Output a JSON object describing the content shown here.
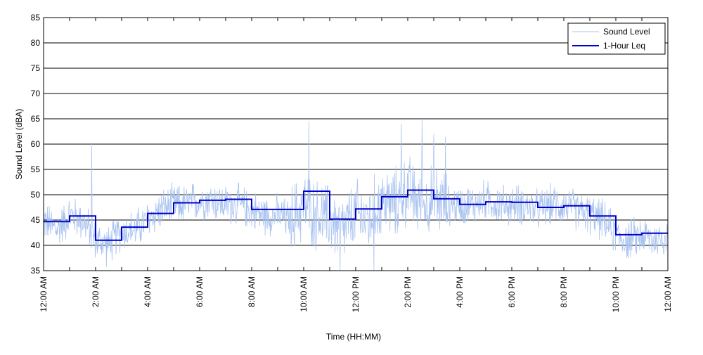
{
  "chart_data": {
    "type": "line",
    "title": "",
    "xlabel": "Time (HH:MM)",
    "ylabel": "Sound Level (dBA)",
    "xlim_hours": [
      0,
      24
    ],
    "ylim": [
      35,
      85
    ],
    "yticks": [
      35,
      40,
      45,
      50,
      55,
      60,
      65,
      70,
      75,
      80,
      85
    ],
    "xtick_labels": [
      "12:00 AM",
      "2:00 AM",
      "4:00 AM",
      "6:00 AM",
      "8:00 AM",
      "10:00 AM",
      "12:00 PM",
      "2:00 PM",
      "4:00 PM",
      "6:00 PM",
      "8:00 PM",
      "10:00 PM",
      "12:00 AM"
    ],
    "grid": "horizontal",
    "legend_position": "top-right",
    "colors": {
      "sound_level": "#a9c3f0",
      "leq": "#0000cc"
    },
    "series": [
      {
        "name": "Sound Level",
        "style": "thin-light",
        "x_hours": [
          0,
          0.5,
          1,
          1.5,
          2,
          2.5,
          3,
          3.5,
          4,
          4.5,
          5,
          5.5,
          6,
          6.5,
          7,
          7.5,
          8,
          8.5,
          9,
          9.5,
          10,
          10.5,
          11,
          11.5,
          12,
          12.5,
          13,
          13.5,
          14,
          14.5,
          15,
          15.5,
          16,
          16.5,
          17,
          17.5,
          18,
          18.5,
          19,
          19.5,
          20,
          20.5,
          21,
          21.5,
          22,
          22.5,
          23,
          23.5,
          24
        ],
        "values": [
          45,
          43,
          46,
          45,
          41,
          40,
          43,
          43,
          45,
          47,
          48,
          48,
          49,
          49,
          48,
          48,
          47,
          46,
          46,
          45,
          48,
          46,
          45,
          43,
          46,
          45,
          49,
          48,
          51,
          48,
          49,
          48,
          48,
          48,
          49,
          48,
          48,
          48,
          47,
          48,
          48,
          47,
          46,
          45,
          42,
          41,
          42,
          41,
          42
        ]
      },
      {
        "name": "1-Hour Leq",
        "style": "step",
        "values": [
          44.7,
          45.8,
          41.0,
          43.6,
          46.3,
          48.4,
          48.9,
          49.1,
          47.1,
          47.1,
          50.7,
          45.2,
          47.2,
          49.6,
          50.9,
          49.2,
          48.1,
          48.6,
          48.5,
          47.5,
          47.8,
          45.8,
          42.1,
          42.4
        ]
      }
    ],
    "spikes": [
      {
        "x_hours": 1.85,
        "value": 60
      },
      {
        "x_hours": 10.2,
        "value": 64.5
      },
      {
        "x_hours": 13.75,
        "value": 64
      },
      {
        "x_hours": 14.55,
        "value": 65
      },
      {
        "x_hours": 15.0,
        "value": 62
      },
      {
        "x_hours": 15.45,
        "value": 61.5
      },
      {
        "x_hours": 11.4,
        "value": 35
      },
      {
        "x_hours": 12.7,
        "value": 35
      }
    ]
  }
}
